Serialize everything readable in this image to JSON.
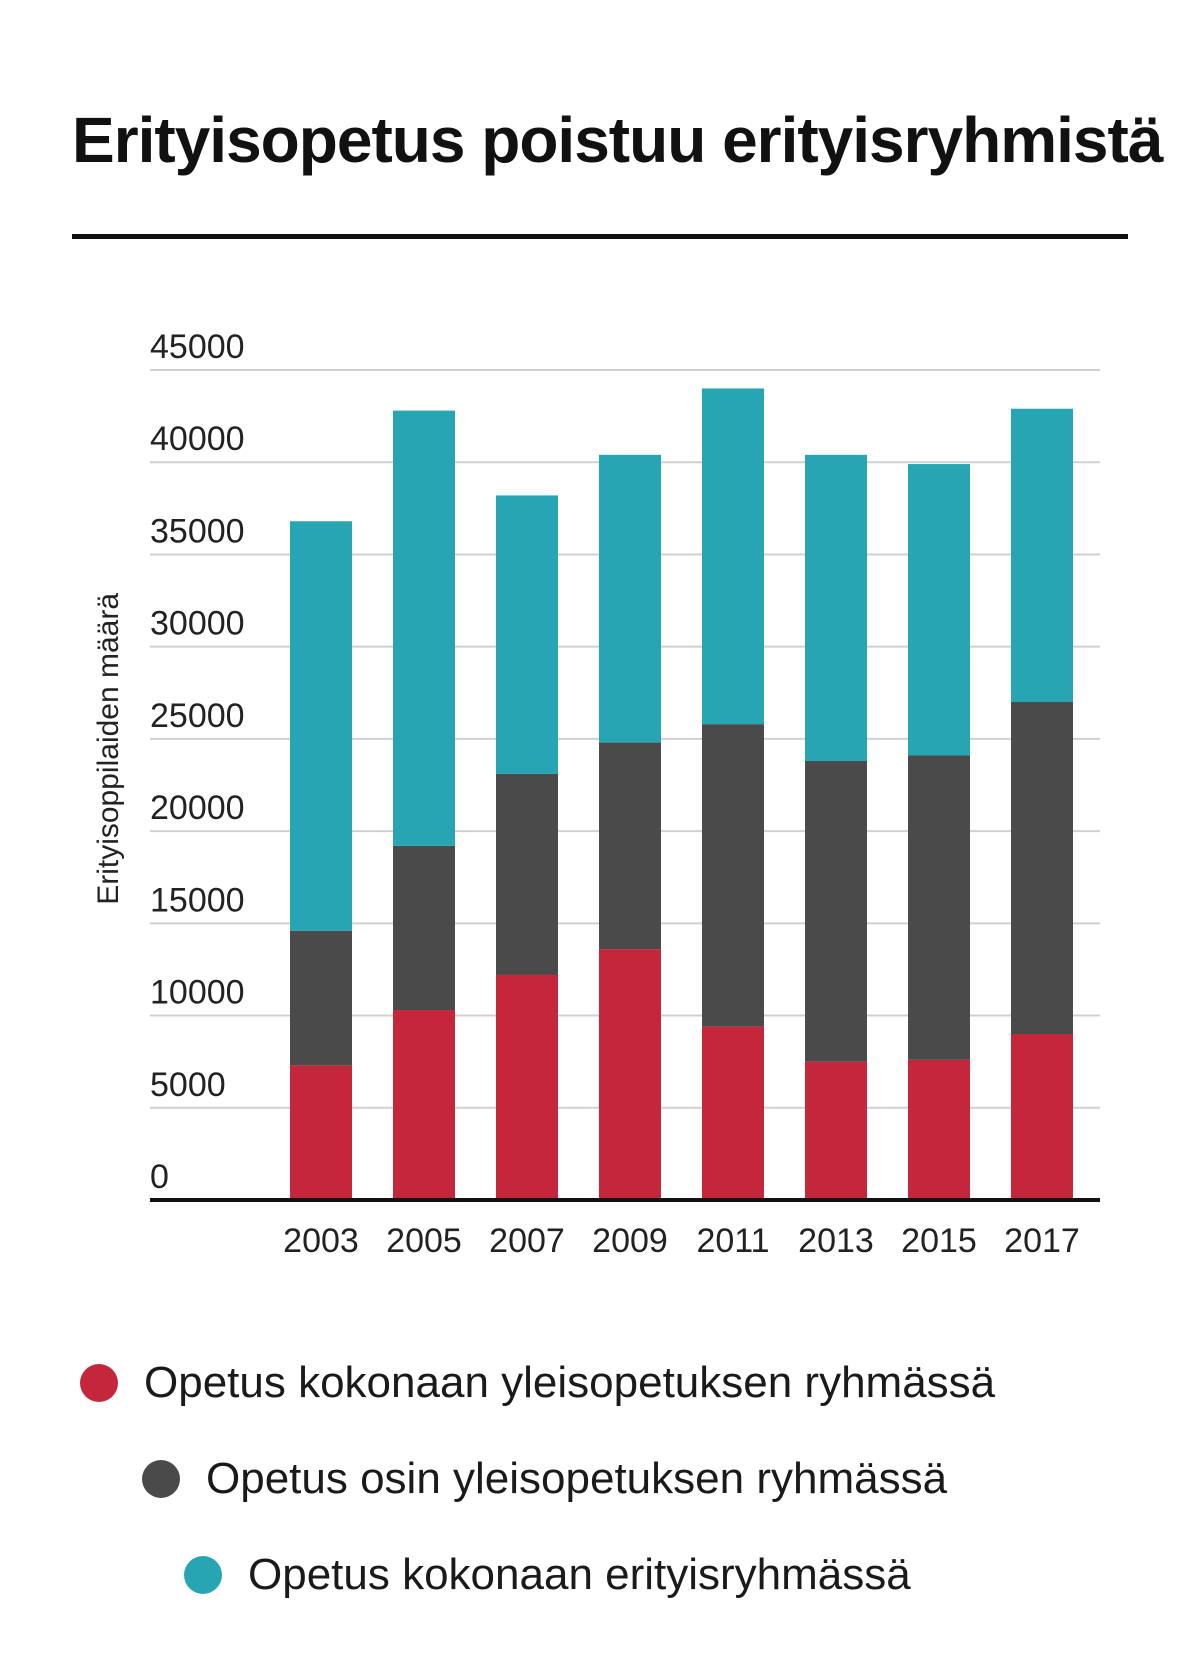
{
  "title": "Erityisopetus poistuu erityisryhmistä",
  "chart_data": {
    "type": "bar",
    "stacked": true,
    "categories": [
      "2003",
      "2005",
      "2007",
      "2009",
      "2011",
      "2013",
      "2015",
      "2017"
    ],
    "series": [
      {
        "name": "Opetus kokonaan yleisopetuksen ryhmässä",
        "color": "#c4273c",
        "values": [
          7300,
          10300,
          12200,
          13600,
          9400,
          7500,
          7600,
          9000
        ]
      },
      {
        "name": "Opetus osin yleisopetuksen ryhmässä",
        "color": "#4a4a4a",
        "values": [
          7300,
          8900,
          10900,
          11200,
          16400,
          16300,
          16500,
          18000
        ]
      },
      {
        "name": "Opetus kokonaan erityisryhmässä",
        "color": "#28a5b3",
        "values": [
          22200,
          23600,
          15100,
          15600,
          18200,
          16600,
          15800,
          15900
        ]
      }
    ],
    "ylabel": "Erityisoppilaiden määrä",
    "ylim": [
      0,
      45000
    ],
    "yticks": [
      0,
      5000,
      10000,
      15000,
      20000,
      25000,
      30000,
      35000,
      40000,
      45000
    ],
    "grid": true,
    "legend_position": "bottom"
  }
}
